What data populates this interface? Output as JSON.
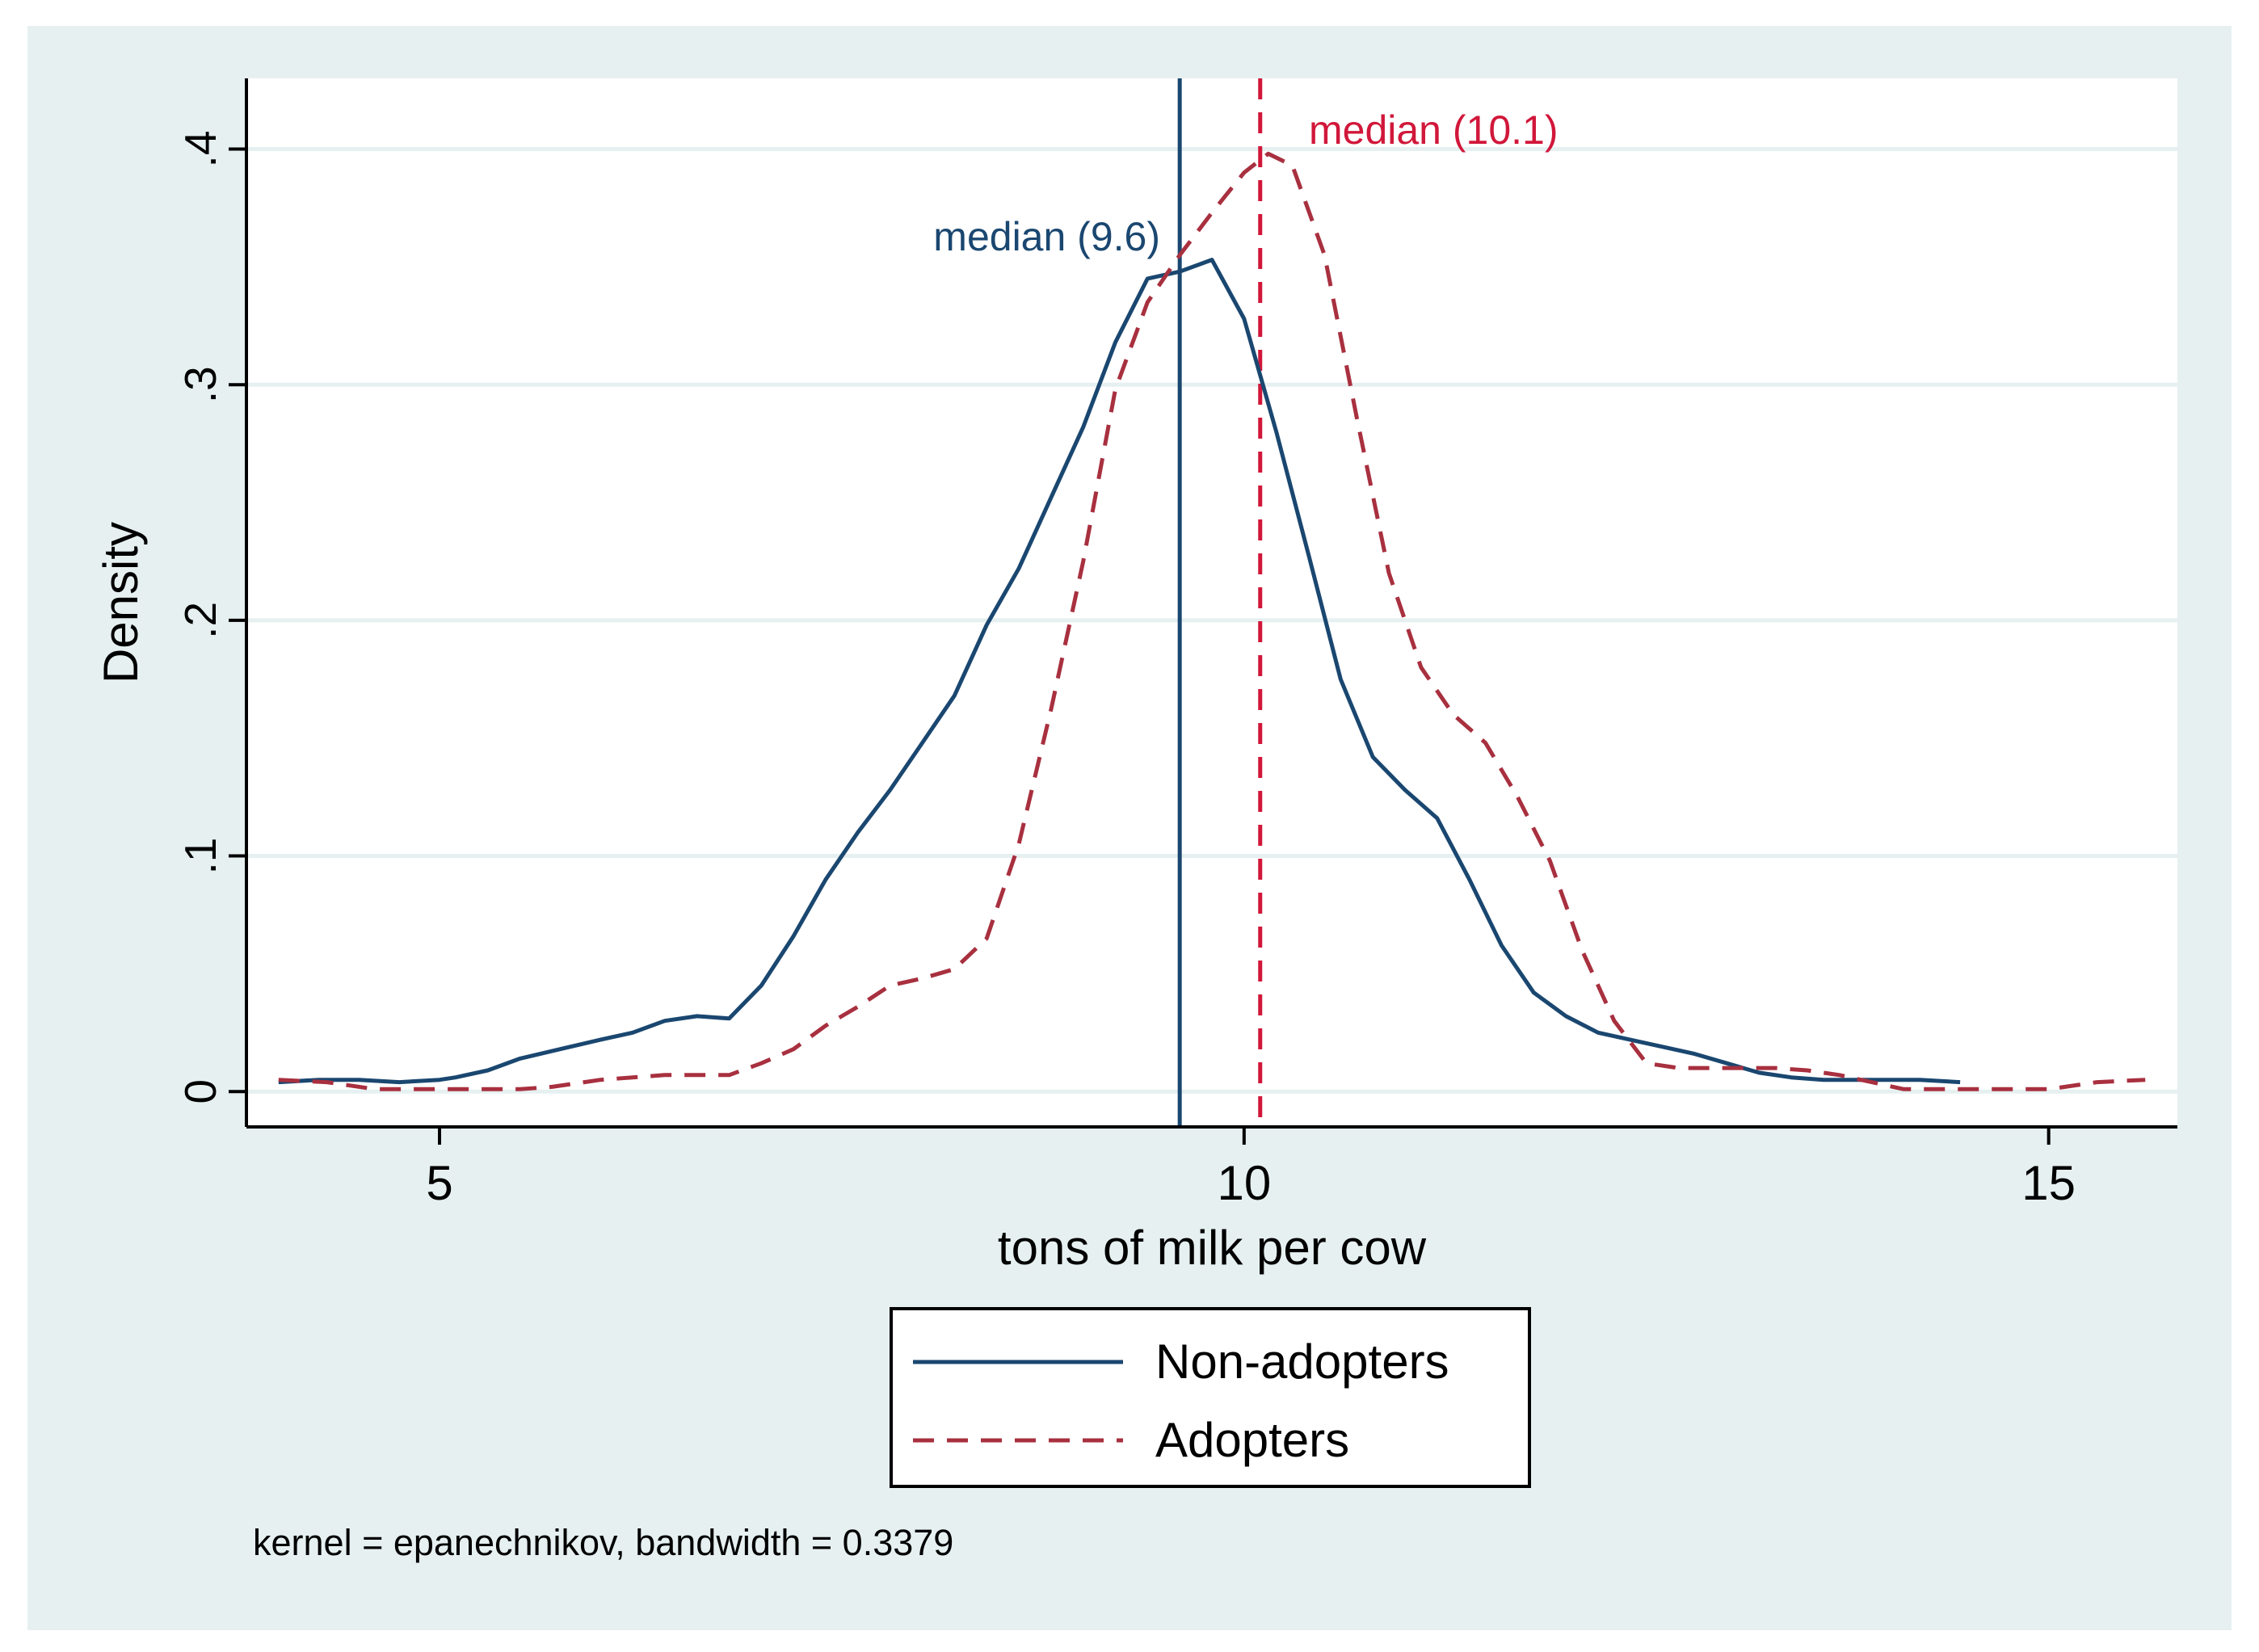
{
  "chart_data": {
    "type": "line",
    "title": "",
    "xlabel": "tons of milk per cow",
    "ylabel": "Density",
    "xlim": [
      3.8,
      15.8
    ],
    "ylim": [
      -0.015,
      0.43
    ],
    "x_ticks": [
      {
        "value": 5,
        "label": "5"
      },
      {
        "value": 10,
        "label": "10"
      },
      {
        "value": 15,
        "label": "15"
      }
    ],
    "y_ticks": [
      {
        "value": 0,
        "label": "0"
      },
      {
        "value": 0.1,
        "label": ".1"
      },
      {
        "value": 0.2,
        "label": ".2"
      },
      {
        "value": 0.3,
        "label": ".3"
      },
      {
        "value": 0.4,
        "label": ".4"
      }
    ],
    "grid": true,
    "legend_position": "bottom-center",
    "note": "kernel = epanechnikov, bandwidth = 0.3379",
    "colors": {
      "outer_background": "#e6f0f1",
      "plot_background": "#ffffff",
      "grid": "#e6f0f1",
      "axis": "#000000",
      "non_adopters": "#1a4770",
      "adopters": "#a8303f",
      "median_adopters_line": "#d1173a",
      "median_adopters_text": "#d1173a",
      "median_non_adopters_text": "#1a4770"
    },
    "series": [
      {
        "name": "Non-adopters",
        "style": "solid",
        "x": [
          4.0,
          4.25,
          4.5,
          4.75,
          5.0,
          5.1,
          5.3,
          5.5,
          5.75,
          6.0,
          6.2,
          6.4,
          6.6,
          6.8,
          7.0,
          7.2,
          7.4,
          7.6,
          7.8,
          8.0,
          8.2,
          8.4,
          8.6,
          8.8,
          9.0,
          9.2,
          9.4,
          9.6,
          9.8,
          10.0,
          10.2,
          10.4,
          10.6,
          10.8,
          11.0,
          11.2,
          11.4,
          11.6,
          11.8,
          12.0,
          12.2,
          12.4,
          12.6,
          12.8,
          13.0,
          13.2,
          13.4,
          13.6,
          13.8,
          14.0,
          14.2,
          14.45
        ],
        "values": [
          0.004,
          0.005,
          0.005,
          0.004,
          0.005,
          0.006,
          0.009,
          0.014,
          0.018,
          0.022,
          0.025,
          0.03,
          0.032,
          0.031,
          0.045,
          0.066,
          0.09,
          0.11,
          0.128,
          0.148,
          0.168,
          0.198,
          0.222,
          0.252,
          0.282,
          0.318,
          0.345,
          0.348,
          0.353,
          0.328,
          0.28,
          0.228,
          0.175,
          0.142,
          0.128,
          0.116,
          0.09,
          0.062,
          0.042,
          0.032,
          0.025,
          0.022,
          0.019,
          0.016,
          0.012,
          0.008,
          0.006,
          0.005,
          0.005,
          0.005,
          0.005,
          0.004
        ]
      },
      {
        "name": "Adopters",
        "style": "dashed",
        "x": [
          4.0,
          4.3,
          4.6,
          5.0,
          5.3,
          5.5,
          5.7,
          6.0,
          6.2,
          6.4,
          6.6,
          6.8,
          7.0,
          7.2,
          7.4,
          7.6,
          7.8,
          8.0,
          8.2,
          8.4,
          8.6,
          8.8,
          9.0,
          9.2,
          9.4,
          9.6,
          9.8,
          10.0,
          10.15,
          10.3,
          10.5,
          10.7,
          10.9,
          11.1,
          11.3,
          11.5,
          11.7,
          11.9,
          12.1,
          12.3,
          12.5,
          12.7,
          12.9,
          13.1,
          13.3,
          13.5,
          13.7,
          13.9,
          14.1,
          14.4,
          14.7,
          15.0,
          15.3,
          15.6
        ],
        "values": [
          0.005,
          0.004,
          0.001,
          0.001,
          0.001,
          0.001,
          0.002,
          0.005,
          0.006,
          0.007,
          0.007,
          0.007,
          0.012,
          0.018,
          0.028,
          0.036,
          0.045,
          0.048,
          0.052,
          0.065,
          0.105,
          0.162,
          0.225,
          0.298,
          0.335,
          0.355,
          0.373,
          0.39,
          0.398,
          0.393,
          0.355,
          0.286,
          0.22,
          0.18,
          0.16,
          0.148,
          0.125,
          0.098,
          0.06,
          0.03,
          0.012,
          0.01,
          0.01,
          0.01,
          0.01,
          0.009,
          0.007,
          0.004,
          0.001,
          0.001,
          0.001,
          0.001,
          0.004,
          0.005
        ]
      }
    ],
    "reference_lines": [
      {
        "name": "median-non-adopters",
        "x": 9.6,
        "style": "solid",
        "label": "median (9.6)"
      },
      {
        "name": "median-adopters",
        "x": 10.1,
        "style": "dashed",
        "label": "median (10.1)"
      }
    ],
    "legend": [
      {
        "label": "Non-adopters",
        "style": "solid"
      },
      {
        "label": "Adopters",
        "style": "dashed"
      }
    ]
  }
}
